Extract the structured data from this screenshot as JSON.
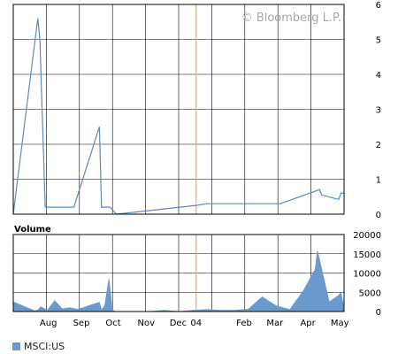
{
  "watermark": "© Bloomberg L.P.",
  "legend": {
    "label": "MSCI:US"
  },
  "colors": {
    "price_line": "#5b8ac0",
    "volume_fill": "#6a9acd",
    "marker": "#e8a040",
    "grid": "#000000",
    "frame": "#000000"
  },
  "chart_data": [
    {
      "type": "line",
      "title": "",
      "xlabel": "",
      "ylabel": "",
      "x_range": [
        "2003-07-13",
        "2004-05-19"
      ],
      "ylim": [
        0,
        6
      ],
      "y_ticks": [
        "0",
        "1",
        "2",
        "3",
        "4",
        "5",
        "6"
      ],
      "y_axis_position": "right",
      "grid": true,
      "reference_line_date": "2004-01-01",
      "series": [
        {
          "x": [
            "2003-07-13",
            "2003-08-05",
            "2003-08-07",
            "2003-08-12",
            "2003-09-01",
            "2003-09-08",
            "2003-10-02",
            "2003-10-04",
            "2003-10-12",
            "2003-10-18",
            "2004-01-01",
            "2004-01-11",
            "2004-03-20",
            "2004-04-26",
            "2004-04-28",
            "2004-05-14",
            "2004-05-16",
            "2004-05-19"
          ],
          "y": [
            0.0,
            5.6,
            5.0,
            0.2,
            0.2,
            0.2,
            2.5,
            0.2,
            0.2,
            0.0,
            0.25,
            0.3,
            0.3,
            0.7,
            0.55,
            0.42,
            0.6,
            0.6
          ]
        }
      ]
    },
    {
      "type": "area",
      "title": "Volume",
      "x_range": [
        "2003-07-13",
        "2004-05-19"
      ],
      "ylim": [
        0,
        20000
      ],
      "y_ticks": [
        "0",
        "5000",
        "10000",
        "15000",
        "20000"
      ],
      "y_axis_position": "right",
      "grid": true,
      "x_tick_labels": [
        {
          "label": "Aug",
          "date": "2003-08-15"
        },
        {
          "label": "Sep",
          "date": "2003-09-15"
        },
        {
          "label": "Oct",
          "date": "2003-10-15"
        },
        {
          "label": "Nov",
          "date": "2003-11-15"
        },
        {
          "label": "Dec",
          "date": "2003-12-15"
        },
        {
          "label": "04",
          "date": "2004-01-01"
        },
        {
          "label": "Feb",
          "date": "2004-02-15"
        },
        {
          "label": "Mar",
          "date": "2004-03-15"
        },
        {
          "label": "Apr",
          "date": "2004-04-15"
        },
        {
          "label": "May",
          "date": "2004-05-15"
        }
      ],
      "series": [
        {
          "x": [
            "2003-07-13",
            "2003-07-26",
            "2003-08-02",
            "2003-08-05",
            "2003-08-08",
            "2003-08-14",
            "2003-08-21",
            "2003-08-28",
            "2003-09-04",
            "2003-09-11",
            "2003-09-17",
            "2003-09-25",
            "2003-10-02",
            "2003-10-04",
            "2003-10-07",
            "2003-10-11",
            "2003-10-14",
            "2003-10-17",
            "2003-10-24",
            "2003-11-06",
            "2003-11-19",
            "2003-12-02",
            "2003-12-16",
            "2003-12-29",
            "2004-01-11",
            "2004-01-24",
            "2004-02-06",
            "2004-02-19",
            "2004-03-03",
            "2004-03-16",
            "2004-03-29",
            "2004-04-11",
            "2004-04-22",
            "2004-04-24",
            "2004-05-05",
            "2004-05-14",
            "2004-05-16",
            "2004-05-19"
          ],
          "y": [
            2500,
            1000,
            200,
            400,
            1200,
            300,
            2800,
            700,
            1000,
            600,
            1000,
            1800,
            2400,
            400,
            1500,
            8500,
            400,
            0,
            0,
            0,
            0,
            300,
            0,
            300,
            500,
            300,
            300,
            600,
            3800,
            1500,
            500,
            5500,
            11000,
            15800,
            2500,
            4200,
            5000,
            800
          ]
        }
      ]
    }
  ]
}
